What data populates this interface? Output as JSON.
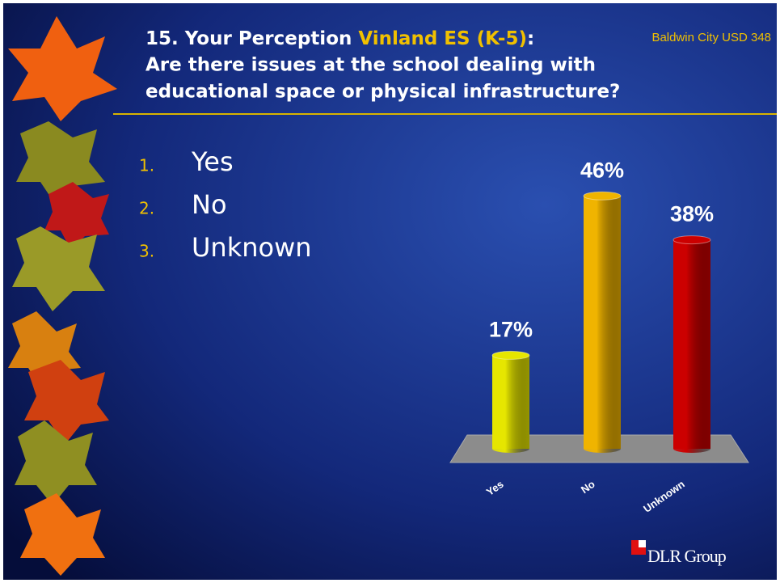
{
  "slide": {
    "title_parts": [
      "15. Your Perception",
      "Vinland ES (K-5)",
      ":"
    ],
    "title_lines": [
      "Are there issues at the school dealing with",
      "educational space or physical infrastructure?"
    ],
    "corner_label": "Baldwin City USD 348",
    "options": [
      {
        "number": "1.",
        "text": "Yes"
      },
      {
        "number": "2.",
        "text": "No"
      },
      {
        "number": "3.",
        "text": "Unknown"
      }
    ],
    "logo": "DLR Group"
  },
  "chart_data": {
    "type": "bar",
    "categories": [
      "Yes",
      "No",
      "Unknown"
    ],
    "values": [
      17,
      46,
      38
    ],
    "value_labels": [
      "17%",
      "46%",
      "38%"
    ],
    "colors": [
      "#e6e600",
      "#f0b400",
      "#cc0000"
    ]
  }
}
